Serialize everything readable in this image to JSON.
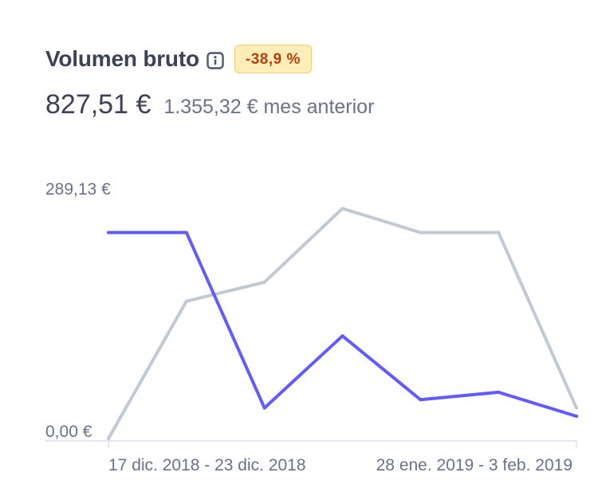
{
  "header": {
    "title": "Volumen bruto",
    "badge": "-38,9 %",
    "amount": "827,51 €",
    "previous": "1.355,32 € mes anterior"
  },
  "icons": {
    "info": "info-icon"
  },
  "colors": {
    "current_series": "#635bff",
    "previous_series": "#c1c9d2",
    "badge_background": "#fcedb9",
    "badge_text": "#bb3d0b"
  },
  "chart_data": {
    "type": "line",
    "title": "Volumen bruto",
    "xlabel": "",
    "ylabel": "",
    "x": [
      "17 dic. 2018 - 23 dic. 2018",
      "",
      "",
      "",
      "28 ene. 2019 - 3 feb. 2019",
      "",
      ""
    ],
    "x_tick_labels": [
      "17 dic. 2018 - 23 dic. 2018",
      "28 ene. 2019 - 3 feb. 2019"
    ],
    "y_tick_labels": [
      "289,13 €",
      "0,00 €"
    ],
    "ylim": [
      0,
      289.13
    ],
    "grid": false,
    "legend": "none",
    "series": [
      {
        "values": [
          0,
          166,
          189,
          278,
          249,
          249,
          37
        ]
      },
      {
        "values": [
          249,
          249,
          37,
          124,
          47,
          56,
          27
        ]
      }
    ]
  }
}
